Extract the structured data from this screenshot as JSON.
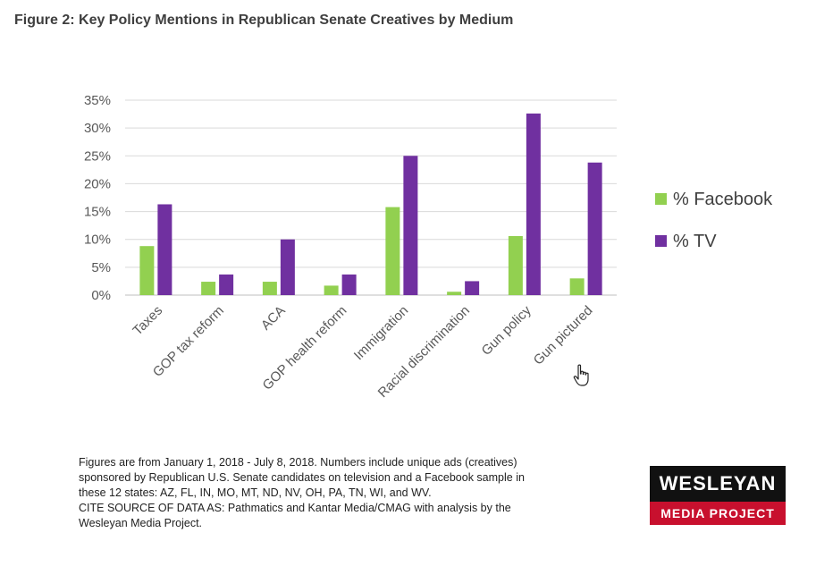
{
  "figure": {
    "title": "Figure 2: Key Policy Mentions in Republican Senate Creatives by Medium"
  },
  "chart_data": {
    "type": "bar",
    "categories": [
      "Taxes",
      "GOP tax reform",
      "ACA",
      "GOP health reform",
      "Immigration",
      "Racial discrimination",
      "Gun policy",
      "Gun pictured"
    ],
    "series": [
      {
        "name": "% Facebook",
        "color": "#92d050",
        "values": [
          8.8,
          2.4,
          2.4,
          1.7,
          15.8,
          0.6,
          10.6,
          3.0
        ]
      },
      {
        "name": "% TV",
        "color": "#7030a0",
        "values": [
          16.3,
          3.7,
          10.0,
          3.7,
          25.0,
          2.5,
          32.6,
          23.8
        ]
      }
    ],
    "y_ticks": [
      "0%",
      "5%",
      "10%",
      "15%",
      "20%",
      "25%",
      "30%",
      "35%"
    ],
    "ylim": [
      0,
      35
    ],
    "grid": true,
    "legend_position": "right"
  },
  "footnote": {
    "lines": [
      "Figures are from January 1, 2018  - July 8, 2018. Numbers include unique ads (creatives)",
      "sponsored by Republican U.S. Senate candidates on television and a Facebook sample in",
      "these 12 states: AZ, FL, IN, MO, MT, ND, NV, OH, PA, TN, WI, and WV.",
      "CITE SOURCE OF DATA AS: Pathmatics and Kantar Media/CMAG with analysis by the",
      "Wesleyan Media Project."
    ]
  },
  "logo": {
    "top": "WESLEYAN",
    "bottom": "MEDIA PROJECT"
  },
  "cursor_icon": "hand-pointer-icon"
}
